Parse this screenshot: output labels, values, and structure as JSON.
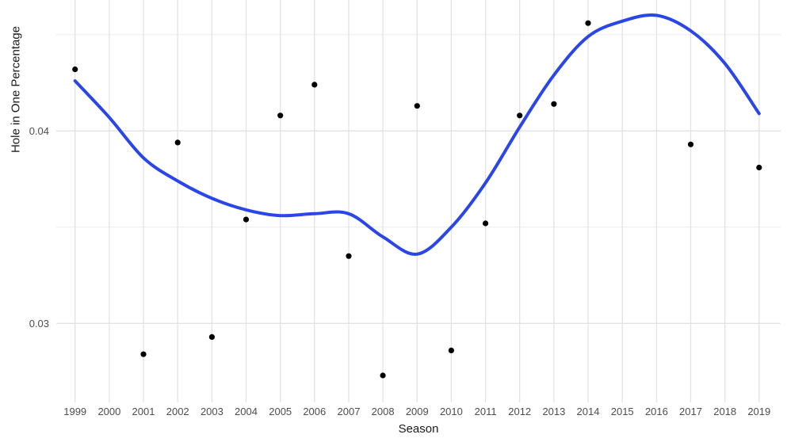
{
  "chart_data": {
    "type": "scatter",
    "title": "",
    "xlabel": "Season",
    "ylabel": "Hole in One Percentage",
    "xlim": [
      1998.45,
      2019.63
    ],
    "ylim": [
      0.0259,
      0.0468
    ],
    "grid": true,
    "legend": false,
    "x_ticks": [
      1999,
      2000,
      2001,
      2002,
      2003,
      2004,
      2005,
      2006,
      2007,
      2008,
      2009,
      2010,
      2011,
      2012,
      2013,
      2014,
      2015,
      2016,
      2017,
      2018,
      2019
    ],
    "y_ticks": [
      {
        "value": 0.04,
        "label": "0.04"
      },
      {
        "value": 0.03,
        "label": "0.03"
      }
    ],
    "y_minor_gridlines": [
      0.045,
      0.035
    ],
    "colors": {
      "background": "#FFFFFF",
      "grid_major": "#E3E3E3",
      "grid_minor": "#EBEBEB",
      "tick_text": "#4D4D4D",
      "title_text": "#1A1A1A",
      "point": "#000000",
      "trend_line": "#2B46E8"
    },
    "series": [
      {
        "name": "hole-in-one-percentage-points",
        "style": "points",
        "color": "#000000",
        "points": [
          {
            "season": 1999,
            "value": 0.0432
          },
          {
            "season": 2001,
            "value": 0.0284
          },
          {
            "season": 2002,
            "value": 0.0394
          },
          {
            "season": 2003,
            "value": 0.0293
          },
          {
            "season": 2004,
            "value": 0.0354
          },
          {
            "season": 2005,
            "value": 0.0408
          },
          {
            "season": 2006,
            "value": 0.0424
          },
          {
            "season": 2007,
            "value": 0.0335
          },
          {
            "season": 2008,
            "value": 0.0273
          },
          {
            "season": 2009,
            "value": 0.0413
          },
          {
            "season": 2010,
            "value": 0.0286
          },
          {
            "season": 2011,
            "value": 0.0352
          },
          {
            "season": 2012,
            "value": 0.0408
          },
          {
            "season": 2013,
            "value": 0.0414
          },
          {
            "season": 2014,
            "value": 0.0456
          },
          {
            "season": 2017,
            "value": 0.0393
          },
          {
            "season": 2019,
            "value": 0.0381
          }
        ]
      },
      {
        "name": "smoothed-trend",
        "style": "line",
        "color": "#2B46E8",
        "points": [
          {
            "season": 1999,
            "value": 0.0426
          },
          {
            "season": 2000,
            "value": 0.0407
          },
          {
            "season": 2001,
            "value": 0.0386
          },
          {
            "season": 2002,
            "value": 0.0374
          },
          {
            "season": 2003,
            "value": 0.0365
          },
          {
            "season": 2004,
            "value": 0.0359
          },
          {
            "season": 2005,
            "value": 0.0356
          },
          {
            "season": 2006,
            "value": 0.0357
          },
          {
            "season": 2007,
            "value": 0.0357
          },
          {
            "season": 2008,
            "value": 0.0345
          },
          {
            "season": 2009,
            "value": 0.0336
          },
          {
            "season": 2010,
            "value": 0.035
          },
          {
            "season": 2011,
            "value": 0.0373
          },
          {
            "season": 2012,
            "value": 0.0402
          },
          {
            "season": 2013,
            "value": 0.0429
          },
          {
            "season": 2014,
            "value": 0.0449
          },
          {
            "season": 2015,
            "value": 0.0457
          },
          {
            "season": 2016,
            "value": 0.046
          },
          {
            "season": 2017,
            "value": 0.0452
          },
          {
            "season": 2018,
            "value": 0.0435
          },
          {
            "season": 2019,
            "value": 0.0409
          }
        ]
      }
    ]
  }
}
